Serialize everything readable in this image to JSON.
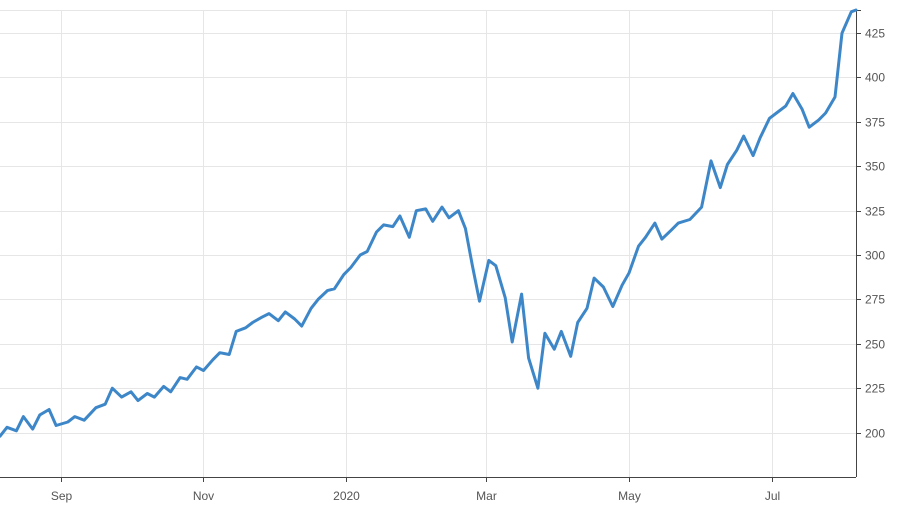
{
  "colors": {
    "line": "#3d87c9",
    "grid": "#e6e6e6",
    "axis": "#444444",
    "tick_text": "#555555",
    "background": "#ffffff"
  },
  "chart_data": {
    "type": "line",
    "title": "",
    "xlabel": "",
    "ylabel": "",
    "grid": true,
    "x_tick_labels": [
      "Sep",
      "Nov",
      "2020",
      "Mar",
      "May",
      "Jul"
    ],
    "x_tick_dates": [
      "2019-09-01",
      "2019-11-01",
      "2020-01-01",
      "2020-03-01",
      "2020-05-01",
      "2020-07-01"
    ],
    "xlim": [
      "2019-08-06",
      "2020-08-06"
    ],
    "y_ticks": [
      200,
      225,
      250,
      275,
      300,
      325,
      350,
      375,
      400,
      425
    ],
    "ylim": [
      175,
      438
    ],
    "series": [
      {
        "name": "",
        "x": [
          "2019-08-06",
          "2019-08-09",
          "2019-08-13",
          "2019-08-16",
          "2019-08-20",
          "2019-08-23",
          "2019-08-27",
          "2019-08-30",
          "2019-09-04",
          "2019-09-07",
          "2019-09-11",
          "2019-09-16",
          "2019-09-20",
          "2019-09-23",
          "2019-09-27",
          "2019-10-01",
          "2019-10-04",
          "2019-10-08",
          "2019-10-11",
          "2019-10-15",
          "2019-10-18",
          "2019-10-22",
          "2019-10-25",
          "2019-10-29",
          "2019-11-01",
          "2019-11-05",
          "2019-11-08",
          "2019-11-12",
          "2019-11-15",
          "2019-11-19",
          "2019-11-22",
          "2019-11-26",
          "2019-11-29",
          "2019-12-03",
          "2019-12-06",
          "2019-12-10",
          "2019-12-13",
          "2019-12-17",
          "2019-12-20",
          "2019-12-24",
          "2019-12-27",
          "2019-12-31",
          "2020-01-03",
          "2020-01-07",
          "2020-01-10",
          "2020-01-14",
          "2020-01-17",
          "2020-01-21",
          "2020-01-24",
          "2020-01-28",
          "2020-01-31",
          "2020-02-04",
          "2020-02-07",
          "2020-02-11",
          "2020-02-14",
          "2020-02-18",
          "2020-02-21",
          "2020-02-24",
          "2020-02-27",
          "2020-03-02",
          "2020-03-05",
          "2020-03-09",
          "2020-03-12",
          "2020-03-16",
          "2020-03-19",
          "2020-03-23",
          "2020-03-26",
          "2020-03-30",
          "2020-04-02",
          "2020-04-06",
          "2020-04-09",
          "2020-04-13",
          "2020-04-16",
          "2020-04-20",
          "2020-04-24",
          "2020-04-28",
          "2020-05-01",
          "2020-05-05",
          "2020-05-08",
          "2020-05-12",
          "2020-05-15",
          "2020-05-19",
          "2020-05-22",
          "2020-05-27",
          "2020-06-01",
          "2020-06-05",
          "2020-06-09",
          "2020-06-12",
          "2020-06-16",
          "2020-06-19",
          "2020-06-23",
          "2020-06-26",
          "2020-06-30",
          "2020-07-03",
          "2020-07-07",
          "2020-07-10",
          "2020-07-14",
          "2020-07-17",
          "2020-07-21",
          "2020-07-24",
          "2020-07-28",
          "2020-07-31",
          "2020-08-04",
          "2020-08-06"
        ],
        "values": [
          198,
          203,
          201,
          209,
          202,
          210,
          213,
          204,
          206,
          209,
          207,
          214,
          216,
          225,
          220,
          223,
          218,
          222,
          220,
          226,
          223,
          231,
          230,
          237,
          235,
          241,
          245,
          244,
          257,
          259,
          262,
          265,
          267,
          263,
          268,
          264,
          260,
          270,
          275,
          280,
          281,
          289,
          293,
          300,
          302,
          313,
          317,
          316,
          322,
          310,
          325,
          326,
          319,
          327,
          321,
          325,
          315,
          294,
          274,
          297,
          294,
          276,
          251,
          278,
          242,
          225,
          256,
          247,
          257,
          243,
          262,
          270,
          287,
          282,
          271,
          283,
          290,
          305,
          310,
          318,
          309,
          314,
          318,
          320,
          327,
          353,
          338,
          351,
          359,
          367,
          356,
          366,
          377,
          380,
          384,
          391,
          382,
          372,
          376,
          380,
          389,
          425,
          437,
          438
        ]
      }
    ]
  }
}
